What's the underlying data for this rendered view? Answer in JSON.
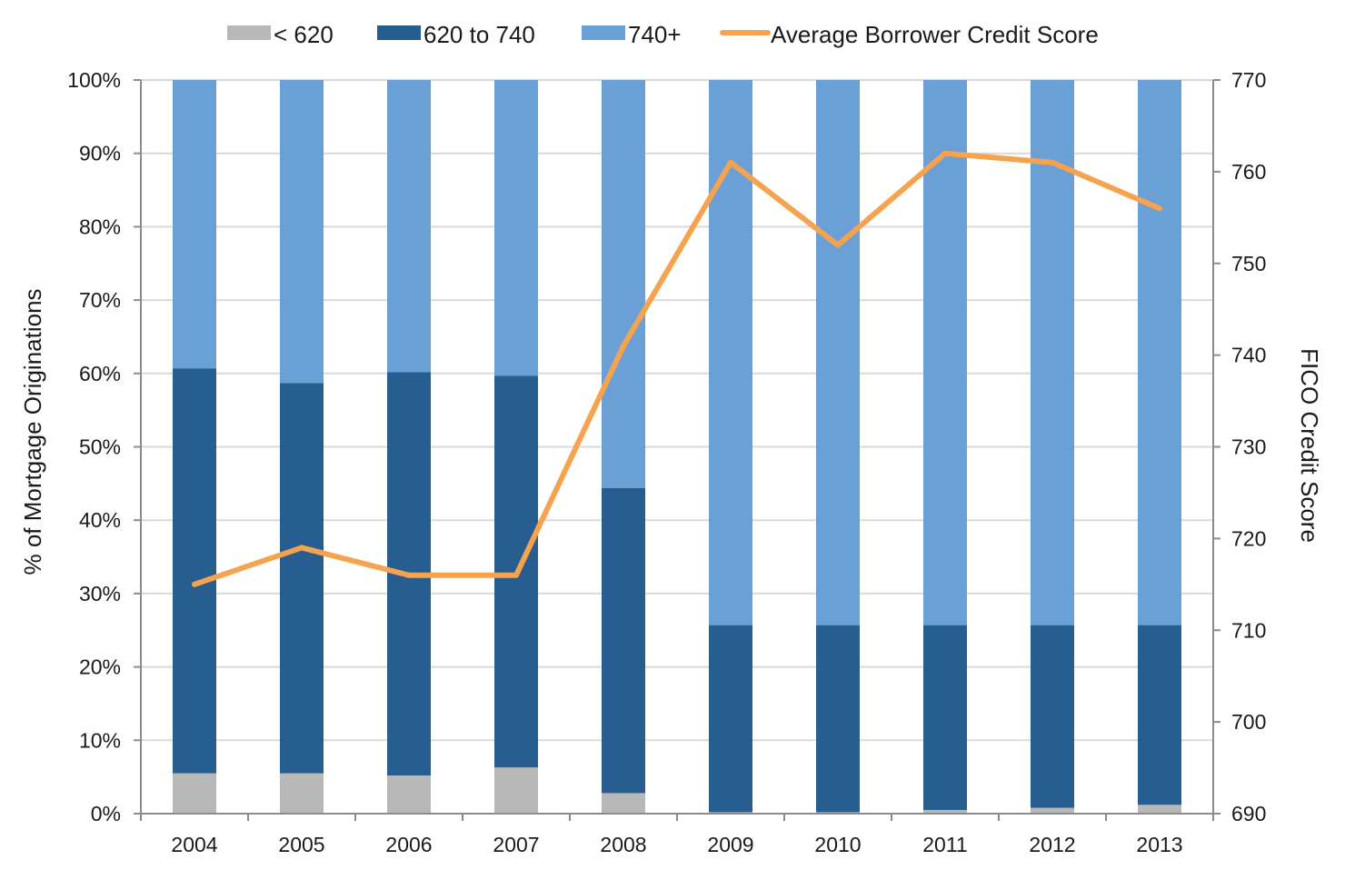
{
  "chart_data": {
    "type": "bar",
    "stacked": true,
    "categories": [
      "2004",
      "2005",
      "2006",
      "2007",
      "2008",
      "2009",
      "2010",
      "2011",
      "2012",
      "2013"
    ],
    "series": [
      {
        "name": "< 620",
        "type": "bar",
        "color": "#b8b8b8",
        "values": [
          5.5,
          5.5,
          5.2,
          6.3,
          2.8,
          0.2,
          0.2,
          0.5,
          0.8,
          1.2
        ]
      },
      {
        "name": "620 to 740",
        "type": "bar",
        "color": "#275d8f",
        "values": [
          55.2,
          53.2,
          55.0,
          53.4,
          41.6,
          25.5,
          25.5,
          25.2,
          24.9,
          24.5
        ]
      },
      {
        "name": "740+",
        "type": "bar",
        "color": "#6aa0d6",
        "values": [
          39.3,
          41.3,
          39.8,
          40.3,
          55.6,
          74.3,
          74.3,
          74.3,
          74.3,
          74.3
        ]
      },
      {
        "name": "Average Borrower Credit Score",
        "type": "line",
        "axis": "right",
        "color": "#f5a34f",
        "values": [
          715,
          719,
          716,
          716,
          741,
          761,
          752,
          762,
          761,
          756
        ]
      }
    ],
    "ylabel": "% of Mortgage Originations",
    "y2label": "FICO Credit Score",
    "ylim": [
      0,
      100
    ],
    "y2lim": [
      690,
      770
    ],
    "yticks": [
      "0%",
      "10%",
      "20%",
      "30%",
      "40%",
      "50%",
      "60%",
      "70%",
      "80%",
      "90%",
      "100%"
    ],
    "y2ticks": [
      "690",
      "700",
      "710",
      "720",
      "730",
      "740",
      "750",
      "760",
      "770"
    ],
    "grid": true,
    "legend_position": "top"
  }
}
